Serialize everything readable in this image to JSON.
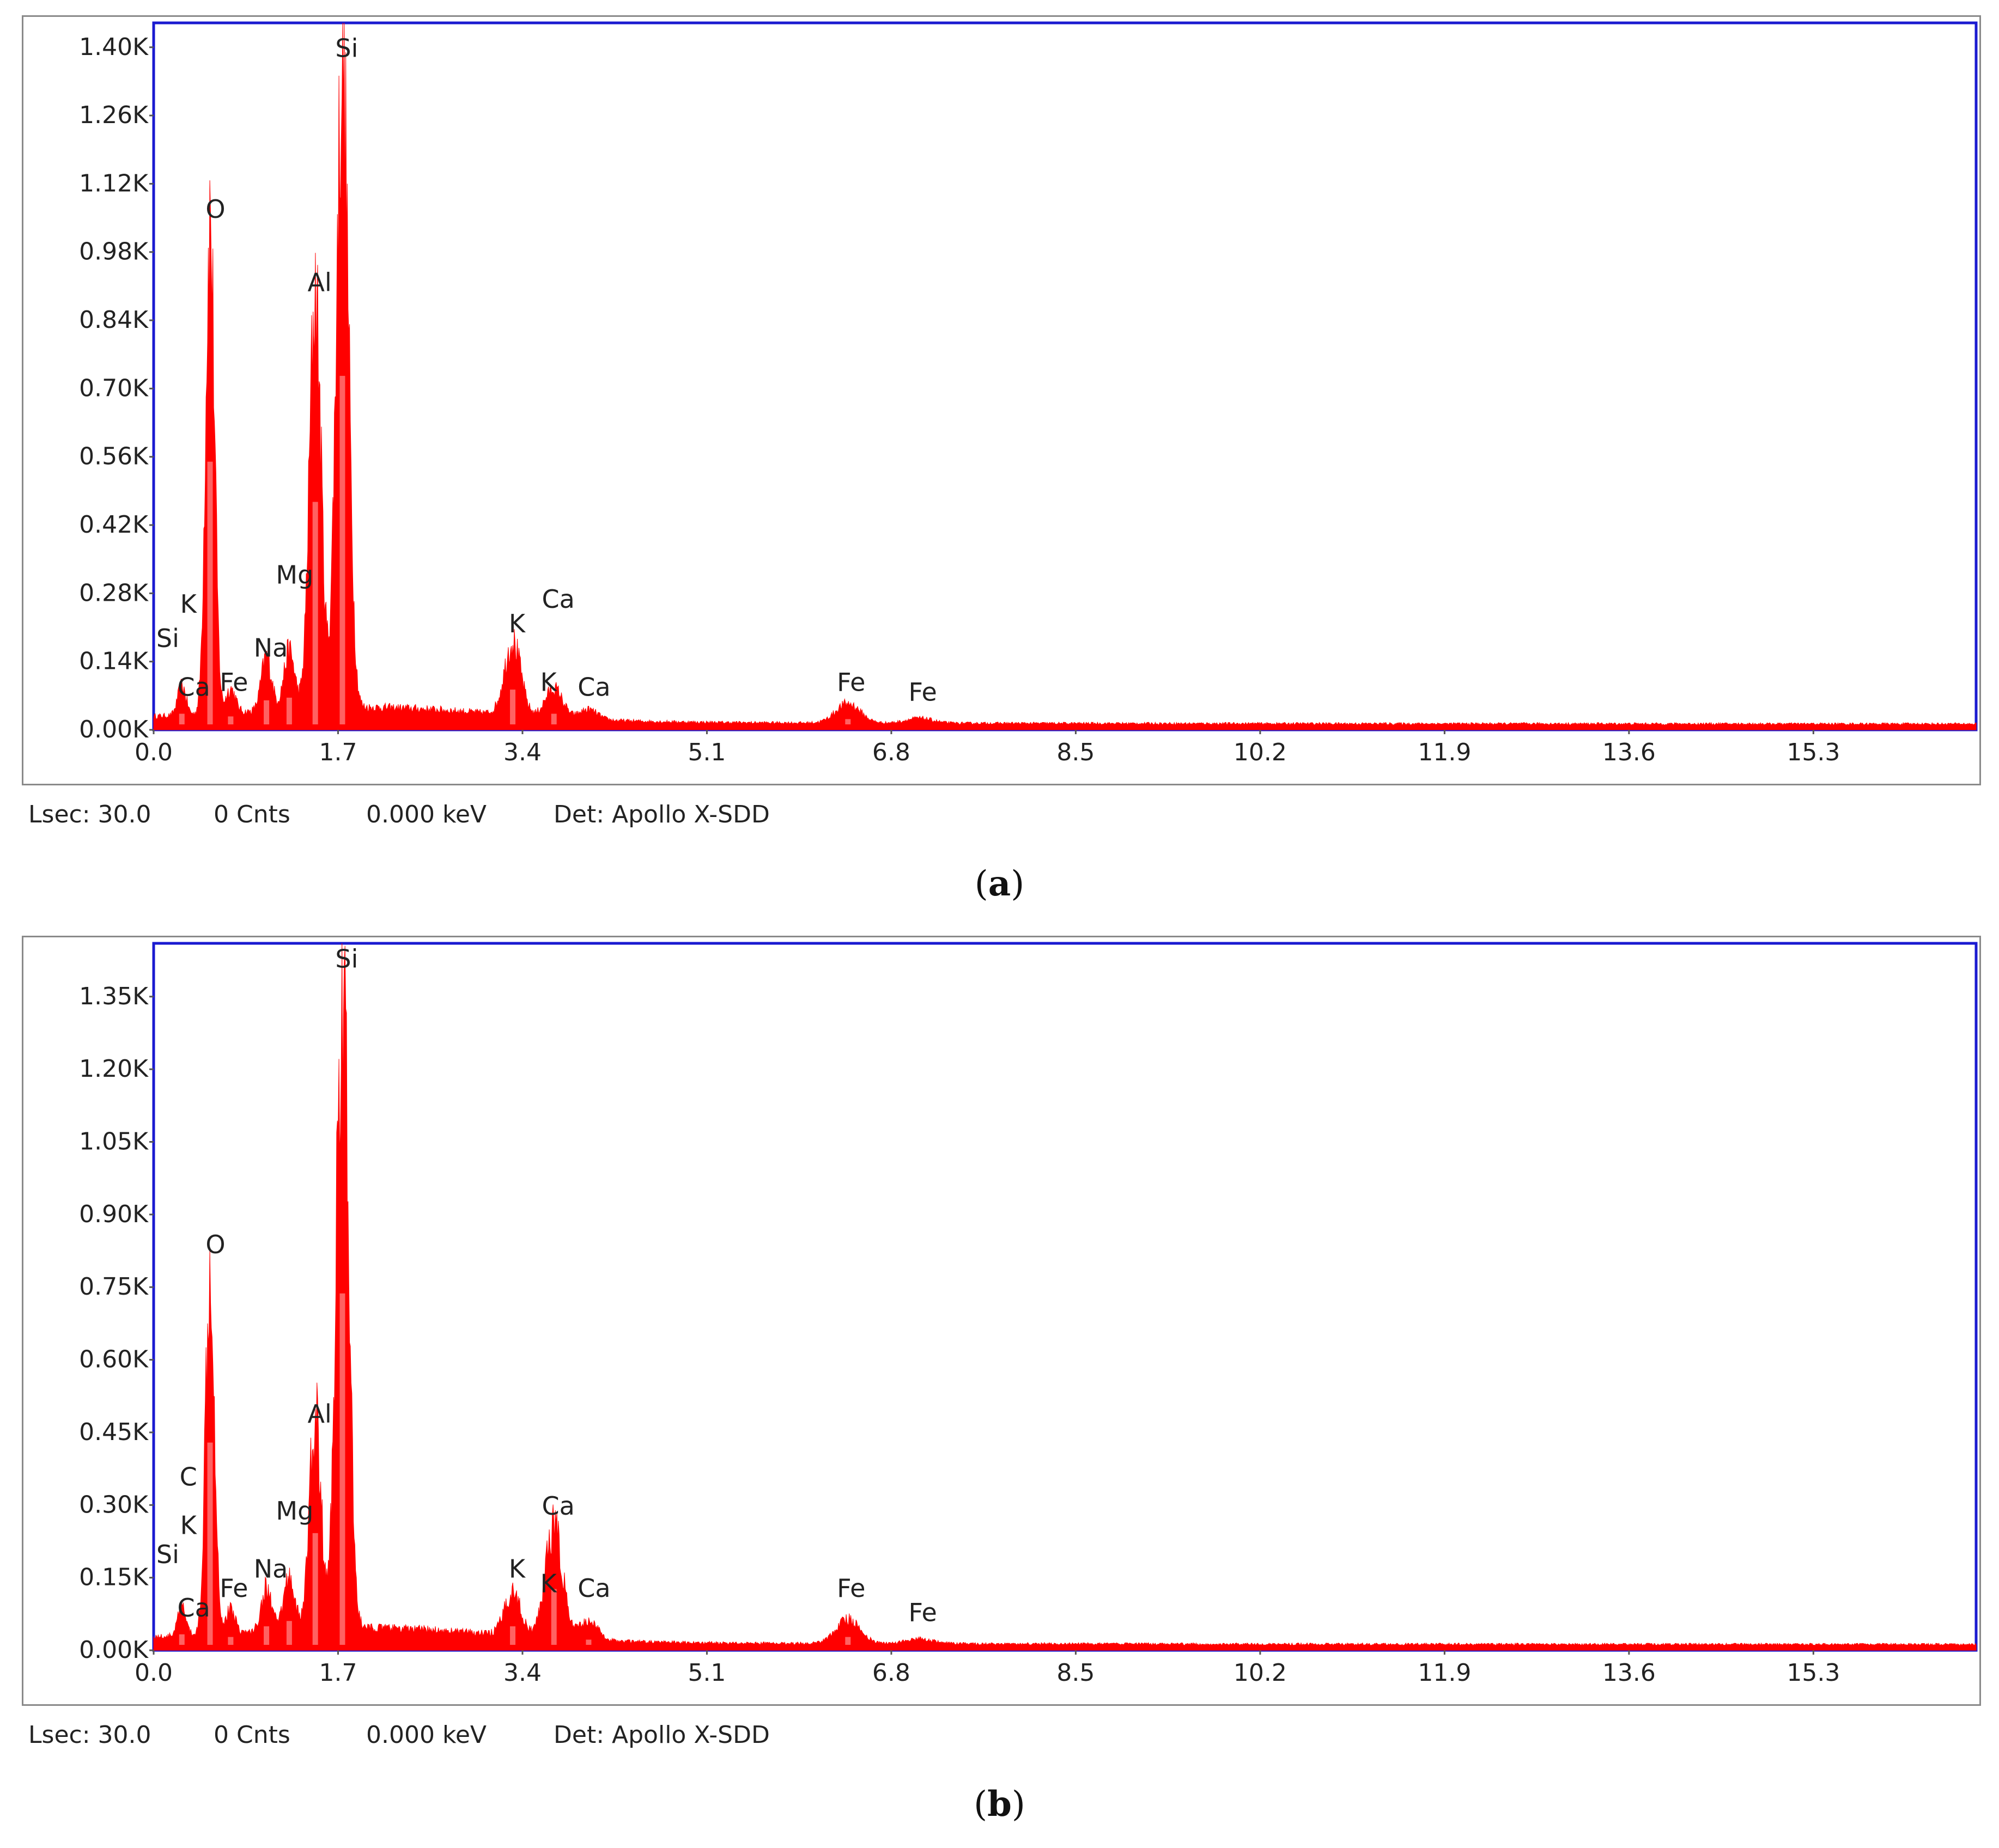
{
  "chart_data": [
    {
      "type": "area",
      "panel_label": "a",
      "xlim": [
        0,
        16.8
      ],
      "ylim": [
        0,
        1.45
      ],
      "x_ticks": [
        "0.0",
        "1.7",
        "3.4",
        "5.1",
        "6.8",
        "8.5",
        "10.2",
        "11.9",
        "13.6",
        "15.3"
      ],
      "x_tick_values": [
        0.0,
        1.7,
        3.4,
        5.1,
        6.8,
        8.5,
        10.2,
        11.9,
        13.6,
        15.3
      ],
      "y_ticks": [
        "0.00K",
        "0.14K",
        "0.28K",
        "0.42K",
        "0.56K",
        "0.70K",
        "0.84K",
        "0.98K",
        "1.12K",
        "1.26K",
        "1.40K"
      ],
      "y_tick_values": [
        0,
        0.14,
        0.28,
        0.42,
        0.56,
        0.7,
        0.84,
        0.98,
        1.12,
        1.26,
        1.4
      ],
      "peaks": [
        {
          "element": "Ca",
          "x": 0.26,
          "y": 0.06
        },
        {
          "element": "O",
          "x": 0.52,
          "y": 1.0
        },
        {
          "element": "Fe",
          "x": 0.71,
          "y": 0.05
        },
        {
          "element": "Na",
          "x": 1.04,
          "y": 0.11
        },
        {
          "element": "Mg",
          "x": 1.25,
          "y": 0.12
        },
        {
          "element": "Al",
          "x": 1.49,
          "y": 0.85
        },
        {
          "element": "Si",
          "x": 1.74,
          "y": 1.32
        },
        {
          "element": "K",
          "x": 3.31,
          "y": 0.15
        },
        {
          "element": "Ca",
          "x": 3.69,
          "y": 0.06
        },
        {
          "element": "Ca",
          "x": 4.01,
          "y": 0.02
        },
        {
          "element": "Fe",
          "x": 6.4,
          "y": 0.04
        },
        {
          "element": "Fe",
          "x": 7.06,
          "y": 0.01
        }
      ],
      "peak_labels": [
        {
          "text": "Si",
          "x": 0.13,
          "y": 0.17
        },
        {
          "text": "K",
          "x": 0.32,
          "y": 0.24
        },
        {
          "text": "Ca",
          "x": 0.37,
          "y": 0.07
        },
        {
          "text": "O",
          "x": 0.57,
          "y": 1.05
        },
        {
          "text": "Fe",
          "x": 0.74,
          "y": 0.08
        },
        {
          "text": "Na",
          "x": 1.08,
          "y": 0.15
        },
        {
          "text": "Mg",
          "x": 1.3,
          "y": 0.3
        },
        {
          "text": "Al",
          "x": 1.53,
          "y": 0.9
        },
        {
          "text": "Si",
          "x": 1.78,
          "y": 1.38
        },
        {
          "text": "K",
          "x": 3.35,
          "y": 0.2
        },
        {
          "text": "Ca",
          "x": 3.73,
          "y": 0.25
        },
        {
          "text": "K",
          "x": 3.64,
          "y": 0.08
        },
        {
          "text": "Ca",
          "x": 4.06,
          "y": 0.07
        },
        {
          "text": "Fe",
          "x": 6.43,
          "y": 0.08
        },
        {
          "text": "Fe",
          "x": 7.09,
          "y": 0.06
        }
      ],
      "status": {
        "lsec": "Lsec: 30.0",
        "cnts": "0 Cnts",
        "kev": "0.000 keV",
        "det": "Det: Apollo X-SDD"
      },
      "caption": "a"
    },
    {
      "type": "area",
      "panel_label": "b",
      "xlim": [
        0,
        16.8
      ],
      "ylim": [
        0,
        1.46
      ],
      "x_ticks": [
        "0.0",
        "1.7",
        "3.4",
        "5.1",
        "6.8",
        "8.5",
        "10.2",
        "11.9",
        "13.6",
        "15.3"
      ],
      "x_tick_values": [
        0.0,
        1.7,
        3.4,
        5.1,
        6.8,
        8.5,
        10.2,
        11.9,
        13.6,
        15.3
      ],
      "y_ticks": [
        "0.00K",
        "0.15K",
        "0.30K",
        "0.45K",
        "0.60K",
        "0.75K",
        "0.90K",
        "1.05K",
        "1.20K",
        "1.35K"
      ],
      "y_tick_values": [
        0,
        0.15,
        0.3,
        0.45,
        0.6,
        0.75,
        0.9,
        1.05,
        1.2,
        1.35
      ],
      "peaks": [
        {
          "element": "Ca",
          "x": 0.26,
          "y": 0.06
        },
        {
          "element": "O",
          "x": 0.52,
          "y": 0.78
        },
        {
          "element": "Fe",
          "x": 0.71,
          "y": 0.05
        },
        {
          "element": "Na",
          "x": 1.04,
          "y": 0.09
        },
        {
          "element": "Mg",
          "x": 1.25,
          "y": 0.11
        },
        {
          "element": "Al",
          "x": 1.49,
          "y": 0.44
        },
        {
          "element": "Si",
          "x": 1.74,
          "y": 1.34
        },
        {
          "element": "K",
          "x": 3.31,
          "y": 0.09
        },
        {
          "element": "Ca",
          "x": 3.69,
          "y": 0.23
        },
        {
          "element": "Ca",
          "x": 4.01,
          "y": 0.04
        },
        {
          "element": "Fe",
          "x": 6.4,
          "y": 0.05
        },
        {
          "element": "Fe",
          "x": 7.06,
          "y": 0.01
        }
      ],
      "peak_labels": [
        {
          "text": "Si",
          "x": 0.13,
          "y": 0.18
        },
        {
          "text": "K",
          "x": 0.32,
          "y": 0.24
        },
        {
          "text": "C",
          "x": 0.32,
          "y": 0.34
        },
        {
          "text": "Ca",
          "x": 0.37,
          "y": 0.07
        },
        {
          "text": "O",
          "x": 0.57,
          "y": 0.82
        },
        {
          "text": "Fe",
          "x": 0.74,
          "y": 0.11
        },
        {
          "text": "Na",
          "x": 1.08,
          "y": 0.15
        },
        {
          "text": "Mg",
          "x": 1.3,
          "y": 0.27
        },
        {
          "text": "Al",
          "x": 1.53,
          "y": 0.47
        },
        {
          "text": "Si",
          "x": 1.78,
          "y": 1.41
        },
        {
          "text": "K",
          "x": 3.35,
          "y": 0.15
        },
        {
          "text": "Ca",
          "x": 3.73,
          "y": 0.28
        },
        {
          "text": "K",
          "x": 3.64,
          "y": 0.12
        },
        {
          "text": "Ca",
          "x": 4.06,
          "y": 0.11
        },
        {
          "text": "Fe",
          "x": 6.43,
          "y": 0.11
        },
        {
          "text": "Fe",
          "x": 7.09,
          "y": 0.06
        }
      ],
      "status": {
        "lsec": "Lsec: 30.0",
        "cnts": "0 Cnts",
        "kev": "0.000 keV",
        "det": "Det: Apollo X-SDD"
      },
      "caption": "b"
    }
  ],
  "colors": {
    "spectrum": "#ff0000",
    "plot_border": "#1a1ad0",
    "frame": "#8a8a8a"
  }
}
